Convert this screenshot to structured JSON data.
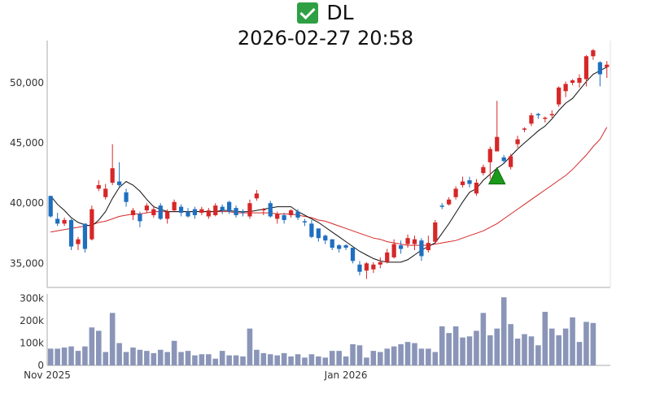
{
  "title": "DL",
  "title_icon": "check-mark-icon",
  "subtitle": "2026-02-27 20:58",
  "colors": {
    "up": "#d62728",
    "down": "#1f6fbf",
    "ma_short": "#111111",
    "ma_long": "#d62728",
    "volume": "#8a95b8",
    "signal": "#1a9a1a"
  },
  "chart_data": [
    {
      "type": "candlestick",
      "ylim": [
        33000,
        53500
      ],
      "y_ticks": [
        "35,000",
        "40,000",
        "45,000",
        "50,000"
      ],
      "y_tick_values": [
        35000,
        40000,
        45000,
        50000
      ],
      "candles": [
        [
          40600,
          38900,
          40600,
          38800
        ],
        [
          38700,
          38300,
          39200,
          38100
        ],
        [
          38300,
          38600,
          38800,
          38100
        ],
        [
          38600,
          36400,
          38700,
          36100
        ],
        [
          36600,
          37000,
          37200,
          36100
        ],
        [
          38300,
          36200,
          38300,
          35900
        ],
        [
          37000,
          39500,
          39800,
          36900
        ],
        [
          41200,
          41500,
          41900,
          41000
        ],
        [
          40500,
          41200,
          41600,
          40300
        ],
        [
          41700,
          42900,
          44900,
          41500
        ],
        [
          41800,
          41500,
          43400,
          41300
        ],
        [
          40900,
          40100,
          41200,
          39700
        ],
        [
          39000,
          39400,
          39600,
          38600
        ],
        [
          39100,
          38500,
          39300,
          38000
        ],
        [
          39400,
          39800,
          40000,
          39200
        ],
        [
          39000,
          39500,
          39800,
          38800
        ],
        [
          39800,
          38700,
          40000,
          38600
        ],
        [
          38700,
          39300,
          39500,
          38300
        ],
        [
          39400,
          40100,
          40300,
          39300
        ],
        [
          39700,
          39200,
          39900,
          38900
        ],
        [
          39300,
          38900,
          39600,
          38800
        ],
        [
          39500,
          39000,
          39700,
          38700
        ],
        [
          39200,
          39500,
          39700,
          39000
        ],
        [
          38900,
          39400,
          39600,
          38700
        ],
        [
          39000,
          39800,
          40000,
          38900
        ],
        [
          39700,
          39400,
          39900,
          39100
        ],
        [
          40100,
          39300,
          40200,
          39100
        ],
        [
          39600,
          39000,
          39800,
          38800
        ],
        [
          39300,
          39200,
          39500,
          38900
        ],
        [
          38900,
          40000,
          40300,
          38700
        ],
        [
          40400,
          40800,
          41100,
          40200
        ],
        [
          39400,
          39500,
          39600,
          39000
        ],
        [
          40000,
          38900,
          40200,
          38800
        ],
        [
          38700,
          39100,
          39300,
          38300
        ],
        [
          39000,
          38600,
          39200,
          38300
        ],
        [
          39000,
          39400,
          39500,
          38800
        ],
        [
          39300,
          38800,
          39500,
          38600
        ],
        [
          38500,
          38400,
          38700,
          38100
        ],
        [
          38300,
          37200,
          38600,
          37100
        ],
        [
          37900,
          37100,
          37900,
          36800
        ],
        [
          37300,
          36900,
          37400,
          36600
        ],
        [
          37000,
          36300,
          37000,
          36100
        ],
        [
          36500,
          36200,
          36600,
          35900
        ],
        [
          36500,
          36300,
          36600,
          36100
        ],
        [
          36300,
          35200,
          36300,
          35000
        ],
        [
          34900,
          34300,
          35200,
          34000
        ],
        [
          34400,
          35000,
          35100,
          33700
        ],
        [
          34500,
          34900,
          35100,
          34200
        ],
        [
          34900,
          35100,
          35500,
          34600
        ],
        [
          35100,
          35900,
          36200,
          35000
        ],
        [
          35500,
          36600,
          37000,
          35400
        ],
        [
          36500,
          36200,
          36900,
          35800
        ],
        [
          36600,
          37100,
          37400,
          36300
        ],
        [
          36600,
          37000,
          37300,
          36100
        ],
        [
          36900,
          35600,
          37100,
          35200
        ],
        [
          36100,
          36700,
          37300,
          35900
        ],
        [
          36800,
          38400,
          38600,
          36700
        ],
        [
          39800,
          39700,
          40000,
          39500
        ],
        [
          39900,
          40300,
          40500,
          39800
        ],
        [
          40500,
          41200,
          41400,
          40300
        ],
        [
          41500,
          41800,
          42200,
          41300
        ],
        [
          41900,
          41600,
          42200,
          41300
        ],
        [
          40800,
          41700,
          42000,
          40600
        ],
        [
          42500,
          43000,
          43200,
          42300
        ],
        [
          43400,
          44500,
          44700,
          42000
        ],
        [
          44300,
          45500,
          48500,
          44300
        ],
        [
          43800,
          43500,
          44000,
          43300
        ],
        [
          43000,
          43900,
          44100,
          42800
        ],
        [
          44900,
          45300,
          45600,
          44600
        ],
        [
          46100,
          46200,
          46300,
          45900
        ],
        [
          46600,
          47300,
          47500,
          46400
        ],
        [
          47400,
          47300,
          47500,
          47000
        ],
        [
          47000,
          47100,
          47200,
          46700
        ],
        [
          47300,
          47400,
          47700,
          47100
        ],
        [
          48200,
          49600,
          49700,
          48000
        ],
        [
          49300,
          49900,
          50100,
          48800
        ],
        [
          50000,
          50200,
          50300,
          49800
        ],
        [
          50000,
          50400,
          50700,
          49600
        ],
        [
          50300,
          52200,
          52300,
          49700
        ],
        [
          52200,
          52700,
          52800,
          51900
        ],
        [
          51700,
          50700,
          51800,
          49700
        ],
        [
          51300,
          51500,
          51800,
          50400
        ]
      ],
      "ma_short": [
        40600,
        39900,
        39400,
        38800,
        38400,
        38200,
        38100,
        38600,
        39300,
        40400,
        41300,
        41800,
        41500,
        41000,
        40300,
        39700,
        39500,
        39300,
        39300,
        39300,
        39300,
        39300,
        39300,
        39300,
        39300,
        39400,
        39400,
        39300,
        39300,
        39300,
        39400,
        39500,
        39600,
        39700,
        39700,
        39700,
        39300,
        39000,
        38700,
        38400,
        38000,
        37600,
        37200,
        36800,
        36400,
        36000,
        35700,
        35400,
        35200,
        35100,
        35100,
        35100,
        35300,
        35700,
        36100,
        36400,
        36700,
        37500,
        38300,
        39200,
        40100,
        40900,
        41200,
        41900,
        42400,
        42900,
        43300,
        43900,
        44500,
        45000,
        45500,
        46000,
        46400,
        47000,
        47700,
        48300,
        48700,
        49400,
        50100,
        50700,
        51000,
        51300
      ],
      "ma_long": [
        37600,
        37700,
        37800,
        37900,
        38000,
        38100,
        38200,
        38400,
        38500,
        38700,
        38900,
        39000,
        39100,
        39100,
        39200,
        39300,
        39300,
        39300,
        39300,
        39300,
        39300,
        39300,
        39300,
        39300,
        39300,
        39300,
        39300,
        39200,
        39200,
        39200,
        39200,
        39200,
        39200,
        39100,
        39100,
        39100,
        39000,
        38900,
        38800,
        38600,
        38500,
        38300,
        38100,
        37900,
        37700,
        37500,
        37300,
        37100,
        37000,
        36800,
        36700,
        36600,
        36500,
        36500,
        36500,
        36500,
        36600,
        36700,
        36800,
        36900,
        37100,
        37300,
        37500,
        37700,
        38000,
        38300,
        38700,
        39100,
        39500,
        39900,
        40300,
        40700,
        41100,
        41500,
        41900,
        42300,
        42800,
        43400,
        44000,
        44700,
        45300,
        46300
      ],
      "signal_marker": {
        "index": 65,
        "value": 42400
      }
    },
    {
      "type": "bar",
      "ylim": [
        0,
        320000
      ],
      "y_ticks": [
        "0",
        "100k",
        "200k",
        "300k"
      ],
      "y_tick_values": [
        0,
        100000,
        200000,
        300000
      ],
      "values": [
        75000,
        75000,
        80000,
        85000,
        65000,
        85000,
        170000,
        155000,
        60000,
        235000,
        100000,
        60000,
        80000,
        70000,
        65000,
        55000,
        70000,
        60000,
        110000,
        60000,
        65000,
        45000,
        50000,
        50000,
        30000,
        65000,
        45000,
        45000,
        40000,
        165000,
        70000,
        55000,
        50000,
        45000,
        55000,
        40000,
        50000,
        35000,
        50000,
        40000,
        35000,
        65000,
        65000,
        40000,
        95000,
        90000,
        35000,
        65000,
        60000,
        75000,
        85000,
        95000,
        105000,
        100000,
        75000,
        75000,
        60000,
        175000,
        145000,
        175000,
        125000,
        130000,
        155000,
        235000,
        135000,
        165000,
        305000,
        185000,
        120000,
        140000,
        130000,
        90000,
        240000,
        165000,
        135000,
        165000,
        215000,
        105000,
        195000,
        190000,
        0,
        0
      ],
      "x_ticks": [
        "Nov 2025",
        "Jan 2026"
      ],
      "x_tick_indices": [
        0,
        43
      ]
    }
  ]
}
